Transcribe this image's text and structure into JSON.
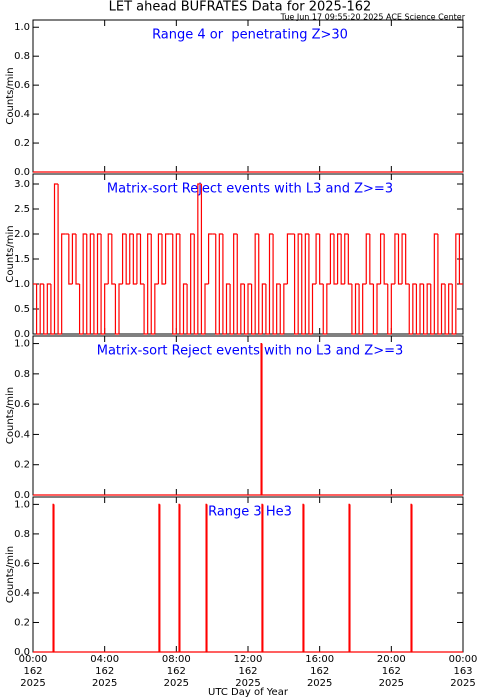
{
  "header": {
    "title": "LET ahead BUFRATES Data for 2025-162",
    "timestamp": "Tue Jun 17 09:55:20 2025 ACE Science Center"
  },
  "chart_data": [
    {
      "type": "step",
      "title": "Range 4 or  penetrating Z>30",
      "ylabel": "Counts/min",
      "color": "#ff0000",
      "xlim": [
        0,
        24
      ],
      "ylim": [
        0,
        1.05
      ],
      "yticks": [
        {
          "value": 0,
          "label": "0.0"
        },
        {
          "value": 0.2,
          "label": "0.2"
        },
        {
          "value": 0.4,
          "label": "0.4"
        },
        {
          "value": 0.6,
          "label": "0.6"
        },
        {
          "value": 0.8,
          "label": "0.8"
        },
        {
          "value": 1,
          "label": "1.0"
        }
      ],
      "x": [
        0
      ],
      "values": [
        0
      ]
    },
    {
      "type": "step",
      "title": "Matrix-sort Reject events with L3 and Z>=3",
      "ylabel": "Counts/min",
      "color": "#ff0000",
      "xlim": [
        0,
        24
      ],
      "ylim": [
        0,
        3.2
      ],
      "yticks": [
        {
          "value": 0,
          "label": "0.0"
        },
        {
          "value": 0.5,
          "label": "0.5"
        },
        {
          "value": 1,
          "label": "1.0"
        },
        {
          "value": 1.5,
          "label": "1.5"
        },
        {
          "value": 2,
          "label": "2.0"
        },
        {
          "value": 2.5,
          "label": "2.5"
        },
        {
          "value": 3,
          "label": "3.0"
        }
      ],
      "x": [
        0,
        0.2,
        0.4,
        0.6,
        0.8,
        1,
        1.2,
        1.4,
        1.6,
        1.8,
        2,
        2.2,
        2.4,
        2.6,
        2.8,
        3,
        3.2,
        3.4,
        3.6,
        3.8,
        4,
        4.2,
        4.4,
        4.6,
        4.8,
        5,
        5.2,
        5.4,
        5.6,
        5.8,
        6,
        6.2,
        6.4,
        6.6,
        6.8,
        7,
        7.2,
        7.4,
        7.6,
        7.8,
        8,
        8.2,
        8.4,
        8.6,
        8.8,
        9,
        9.2,
        9.4,
        9.6,
        9.8,
        10,
        10.2,
        10.4,
        10.6,
        10.8,
        11,
        11.2,
        11.4,
        11.6,
        11.8,
        12,
        12.2,
        12.4,
        12.6,
        12.8,
        13,
        13.2,
        13.4,
        13.6,
        13.8,
        14,
        14.2,
        14.4,
        14.6,
        14.8,
        15,
        15.2,
        15.4,
        15.6,
        15.8,
        16,
        16.2,
        16.4,
        16.6,
        16.8,
        17,
        17.2,
        17.4,
        17.6,
        17.8,
        18,
        18.2,
        18.4,
        18.6,
        18.8,
        19,
        19.2,
        19.4,
        19.6,
        19.8,
        20,
        20.2,
        20.4,
        20.6,
        20.8,
        21,
        21.2,
        21.4,
        21.6,
        21.8,
        22,
        22.2,
        22.4,
        22.6,
        22.8,
        23,
        23.2,
        23.4,
        23.6,
        23.8
      ],
      "values": [
        1,
        0,
        1,
        0,
        1,
        0,
        3,
        0,
        2,
        2,
        1,
        2,
        1,
        0,
        2,
        0,
        2,
        0,
        2,
        0,
        1,
        2,
        1,
        0,
        1,
        2,
        1,
        2,
        1,
        2,
        1,
        0,
        2,
        0,
        1,
        2,
        1,
        2,
        2,
        0,
        2,
        0,
        1,
        0,
        2,
        0,
        3,
        0,
        1,
        2,
        2,
        0,
        2,
        0,
        1,
        0,
        2,
        0,
        1,
        0,
        1,
        0,
        2,
        0,
        1,
        0,
        2,
        0,
        1,
        0,
        1,
        2,
        2,
        0,
        2,
        0,
        2,
        0,
        1,
        2,
        1,
        0,
        1,
        2,
        1,
        2,
        1,
        2,
        1,
        0,
        1,
        0,
        1,
        2,
        1,
        0,
        1,
        2,
        1,
        0,
        1,
        2,
        1,
        2,
        1,
        0,
        1,
        0,
        1,
        0,
        1,
        0,
        2,
        0,
        1,
        0,
        1,
        0,
        2,
        1
      ]
    },
    {
      "type": "step",
      "title": "Matrix-sort Reject events with no L3 and Z>=3",
      "ylabel": "Counts/min",
      "color": "#ff0000",
      "xlim": [
        0,
        24
      ],
      "ylim": [
        0,
        1.05
      ],
      "yticks": [
        {
          "value": 0,
          "label": "0.0"
        },
        {
          "value": 0.2,
          "label": "0.2"
        },
        {
          "value": 0.4,
          "label": "0.4"
        },
        {
          "value": 0.6,
          "label": "0.6"
        },
        {
          "value": 0.8,
          "label": "0.8"
        },
        {
          "value": 1,
          "label": "1.0"
        }
      ],
      "x": [
        0,
        12.73,
        12.78
      ],
      "values": [
        0,
        1,
        0
      ]
    },
    {
      "type": "step",
      "title": "Range 3 He3",
      "ylabel": "Counts/min",
      "xlabel": "UTC Day of Year",
      "color": "#ff0000",
      "xlim": [
        0,
        24
      ],
      "ylim": [
        0,
        1.05
      ],
      "yticks": [
        {
          "value": 0,
          "label": "0.0"
        },
        {
          "value": 0.2,
          "label": "0.2"
        },
        {
          "value": 0.4,
          "label": "0.4"
        },
        {
          "value": 0.6,
          "label": "0.6"
        },
        {
          "value": 0.8,
          "label": "0.8"
        },
        {
          "value": 1,
          "label": "1.0"
        }
      ],
      "xticks": [
        {
          "value": 0,
          "label": "00:00",
          "day": "162",
          "year": "2025"
        },
        {
          "value": 4,
          "label": "04:00",
          "day": "162",
          "year": "2025"
        },
        {
          "value": 8,
          "label": "08:00",
          "day": "162",
          "year": "2025"
        },
        {
          "value": 12,
          "label": "12:00",
          "day": "162",
          "year": "2025"
        },
        {
          "value": 16,
          "label": "16:00",
          "day": "162",
          "year": "2025"
        },
        {
          "value": 20,
          "label": "20:00",
          "day": "162",
          "year": "2025"
        },
        {
          "value": 24,
          "label": "00:00",
          "day": "163",
          "year": "2025"
        }
      ],
      "x": [
        0,
        1.12,
        1.17,
        7.03,
        7.08,
        8.15,
        8.2,
        9.66,
        9.71,
        12.78,
        12.83,
        15.07,
        15.12,
        17.64,
        17.69,
        21.1,
        21.15
      ],
      "values": [
        0,
        1,
        0,
        1,
        0,
        1,
        0,
        1,
        0,
        1,
        0,
        1,
        0,
        1,
        0,
        1,
        0
      ]
    }
  ]
}
